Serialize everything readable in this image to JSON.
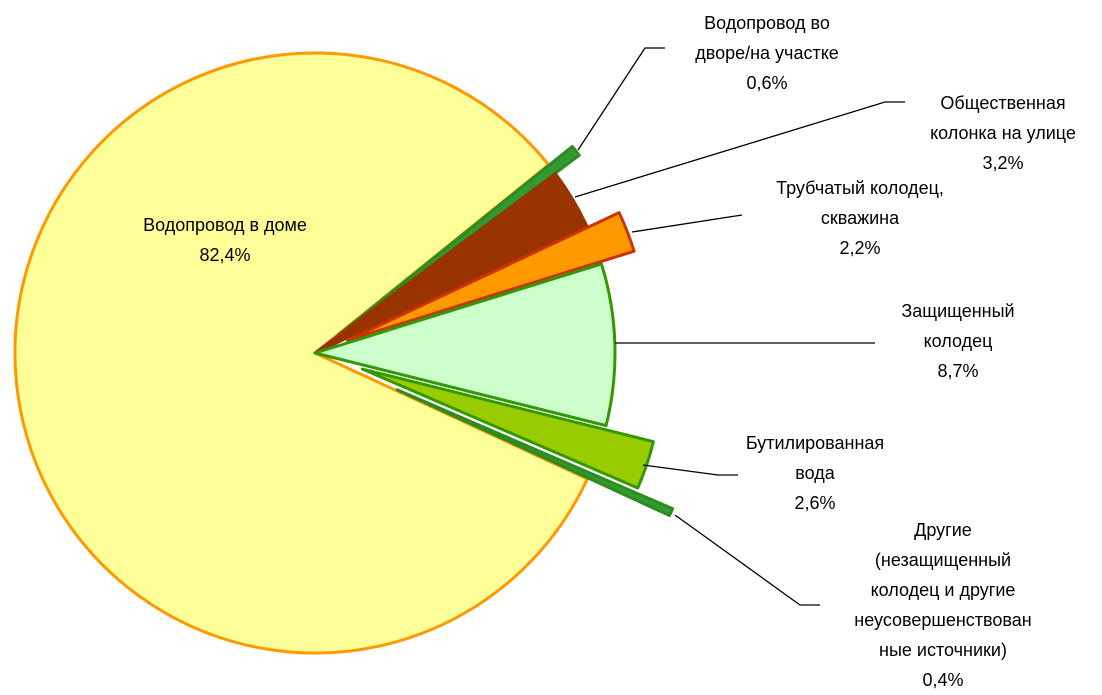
{
  "chart_data": {
    "type": "pie",
    "categories": [
      "Водопровод в доме",
      "Водопровод во\nдворе/на участке",
      "Общественная\nколонка на улице",
      "Трубчатый колодец,\nскважина",
      "Защищенный\nколодец",
      "Бутилированная\nвода",
      "Другие\n(незащищенный\nколодец и другие\nнеусовершенствован\nные источники)"
    ],
    "values": [
      82.4,
      0.6,
      3.2,
      2.2,
      8.7,
      2.6,
      0.4
    ],
    "value_labels": [
      "82,4%",
      "0,6%",
      "3,2%",
      "2,2%",
      "8,7%",
      "2,6%",
      "0,4%"
    ],
    "colors": [
      "#ffff99",
      "#339933",
      "#993300",
      "#ff9900",
      "#ccffcc",
      "#99cc00",
      "#339933"
    ],
    "edge_colors": [
      "#ff9900",
      "#2e8b1e",
      "#993300",
      "#cc3300",
      "#339900",
      "#339900",
      "#2e8b1e"
    ]
  }
}
